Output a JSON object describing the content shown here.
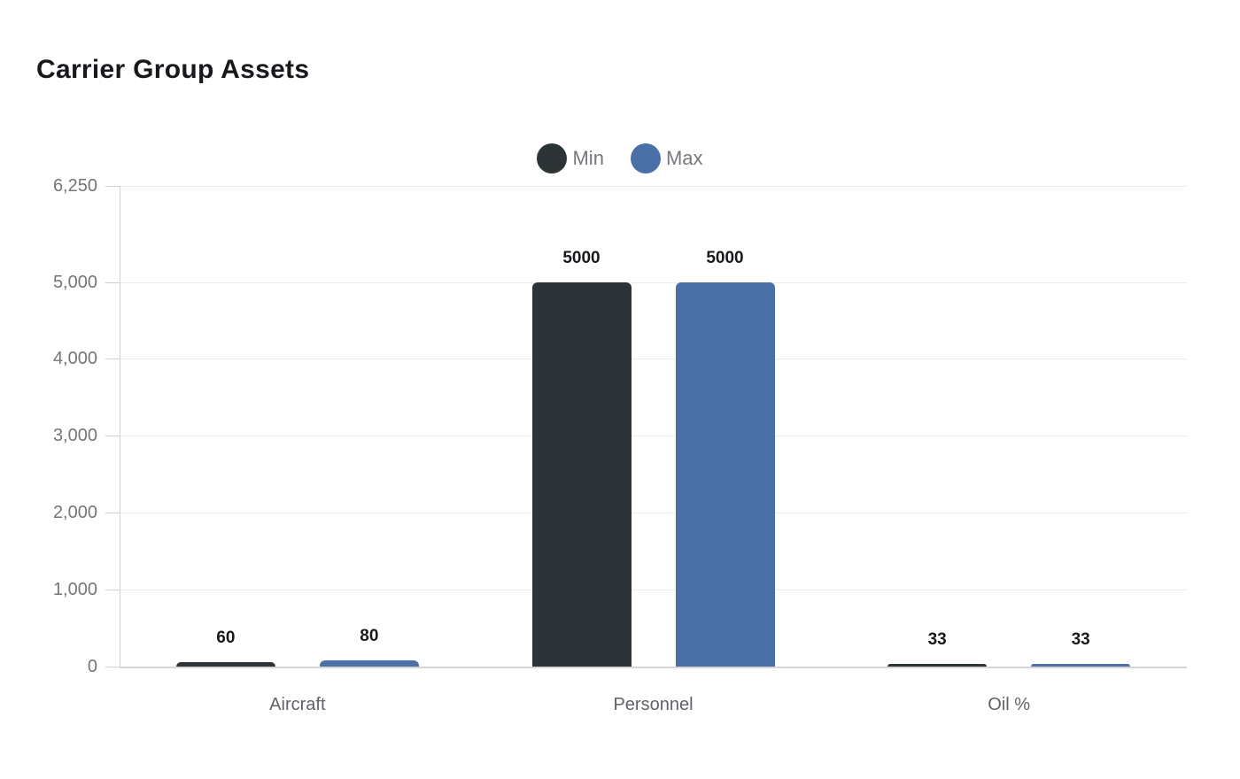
{
  "chart_data": {
    "type": "bar",
    "title": "Carrier Group Assets",
    "categories": [
      "Aircraft",
      "Personnel",
      "Oil %"
    ],
    "series": [
      {
        "name": "Min",
        "color": "#2c3438",
        "values": [
          60,
          5000,
          33
        ],
        "value_labels": [
          "60",
          "5000",
          "33"
        ]
      },
      {
        "name": "Max",
        "color": "#4b70a8",
        "values": [
          80,
          5000,
          33
        ],
        "value_labels": [
          "80",
          "5000",
          "33"
        ]
      }
    ],
    "xlabel": "",
    "ylabel": "",
    "ylim": [
      0,
      6250
    ],
    "yticks": [
      {
        "value": 0,
        "label": "0"
      },
      {
        "value": 1000,
        "label": "1,000"
      },
      {
        "value": 2000,
        "label": "2,000"
      },
      {
        "value": 3000,
        "label": "3,000"
      },
      {
        "value": 4000,
        "label": "4,000"
      },
      {
        "value": 5000,
        "label": "5,000"
      },
      {
        "value": 6250,
        "label": "6,250"
      }
    ],
    "grid": true,
    "legend_position": "top-center",
    "value_labels_shown": true
  },
  "colors": {
    "background": "#ffffff",
    "title_text": "#17191d",
    "axis_tick_text": "#757575",
    "category_text": "#5f6368",
    "value_label_text": "#17191c",
    "legend_text": "#75787d",
    "gridline": "#ececec",
    "axis_line": "#d6d6d6",
    "series_min": "#2c3438",
    "series_max": "#4b70a8"
  }
}
